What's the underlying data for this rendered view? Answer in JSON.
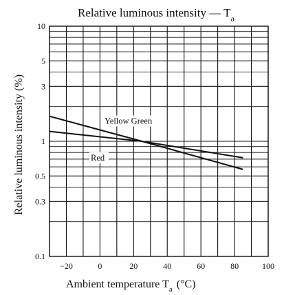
{
  "chart_data": {
    "type": "line",
    "title": "Relative luminous intensity — T",
    "title_subscript": "a",
    "xlabel": "Ambient temperature  T",
    "xlabel_subscript": "a",
    "xlabel_unit": "(°C)",
    "ylabel": "Relative luminous intensity  (%)",
    "xlim": [
      -30,
      100
    ],
    "ylim": [
      0.1,
      10
    ],
    "y_scale": "log",
    "grid": true,
    "x_ticks": [
      -20,
      0,
      20,
      40,
      60,
      80,
      100
    ],
    "y_ticks": [
      {
        "value": 0.1,
        "label": "0.1"
      },
      {
        "value": 0.3,
        "label": "0.3"
      },
      {
        "value": 0.5,
        "label": "0.5"
      },
      {
        "value": 1,
        "label": "1"
      },
      {
        "value": 3,
        "label": "3"
      },
      {
        "value": 5,
        "label": "5"
      },
      {
        "value": 10,
        "label": "10"
      }
    ],
    "y_minor_grid": [
      0.2,
      0.4,
      0.6,
      0.7,
      0.8,
      0.9,
      2,
      4,
      6,
      7,
      8,
      9
    ],
    "series": [
      {
        "name": "Yellow Green",
        "x": [
          -30,
          25,
          85
        ],
        "y": [
          1.65,
          1.0,
          0.57
        ],
        "color": "#111111"
      },
      {
        "name": "Red",
        "x": [
          -30,
          25,
          85
        ],
        "y": [
          1.22,
          1.0,
          0.72
        ],
        "color": "#111111"
      }
    ]
  }
}
